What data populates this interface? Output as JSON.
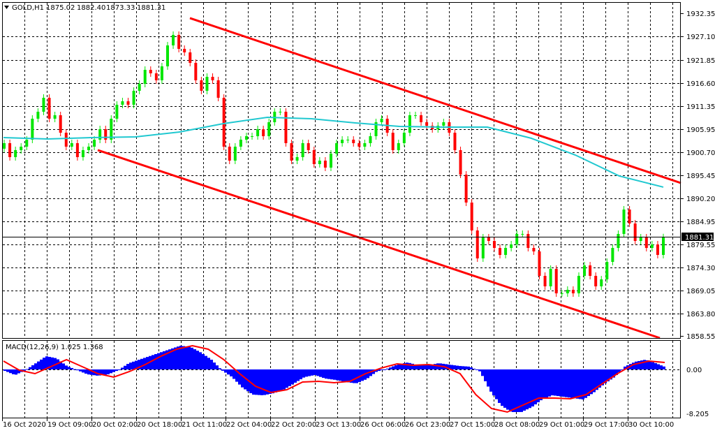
{
  "header": {
    "symbol_label": "GOLD,H1",
    "open": "1875.02",
    "high": "1882.40",
    "low": "1873.33",
    "close": "1881.31"
  },
  "current_price_label": "1881.31",
  "price_axis": [
    "1932.35",
    "1927.10",
    "1921.85",
    "1916.60",
    "1911.35",
    "1905.95",
    "1900.70",
    "1895.45",
    "1890.20",
    "1884.95",
    "1879.55",
    "1874.30",
    "1869.05",
    "1863.80",
    "1858.55"
  ],
  "macd_panel": {
    "label": "MACD(12,26,9) 1.025 1.368",
    "axis": [
      "0.00",
      "-8.205"
    ]
  },
  "time_axis": [
    "16 Oct 2020",
    "19 Oct 09:00",
    "20 Oct 02:00",
    "20 Oct 18:00",
    "21 Oct 11:00",
    "22 Oct 04:00",
    "22 Oct 20:00",
    "23 Oct 13:00",
    "26 Oct 06:00",
    "26 Oct 23:00",
    "27 Oct 15:00",
    "28 Oct 08:00",
    "29 Oct 01:00",
    "29 Oct 17:00",
    "30 Oct 10:00"
  ],
  "colors": {
    "up": "#00e600",
    "down": "#ff0000",
    "ma": "#20c8d0",
    "trend": "#ff0000",
    "histogram": "#0000ff",
    "signal": "#ff0000",
    "grid": "#000000"
  },
  "chart_data": [
    {
      "type": "candlestick",
      "title": "GOLD,H1",
      "ylim": [
        1858.55,
        1932.35
      ],
      "grid": true,
      "first_open": 1901.5,
      "closes": [
        1902.76,
        1899.58,
        1901.17,
        1901.96,
        1903.55,
        1908.33,
        1909.92,
        1913.1,
        1908.33,
        1909.12,
        1905.14,
        1901.96,
        1902.76,
        1899.58,
        1901.17,
        1901.96,
        1903.55,
        1905.94,
        1903.55,
        1908.33,
        1911.51,
        1912.3,
        1911.51,
        1914.69,
        1916.28,
        1919.46,
        1918.67,
        1917.08,
        1920.26,
        1925.03,
        1927.42,
        1924.24,
        1923.44,
        1921.05,
        1917.08,
        1914.69,
        1917.87,
        1917.08,
        1913.1,
        1901.96,
        1898.78,
        1901.96,
        1903.55,
        1904.35,
        1904.35,
        1905.94,
        1904.35,
        1907.53,
        1909.92,
        1909.92,
        1902.76,
        1898.78,
        1899.58,
        1902.76,
        1901.17,
        1897.99,
        1898.78,
        1897.19,
        1900.37,
        1902.76,
        1903.55,
        1903.55,
        1902.76,
        1901.96,
        1902.76,
        1904.35,
        1907.53,
        1908.33,
        1905.14,
        1901.17,
        1902.76,
        1905.14,
        1909.12,
        1909.12,
        1907.53,
        1906.73,
        1905.94,
        1906.73,
        1907.53,
        1905.14,
        1901.17,
        1895.6,
        1889.23,
        1882.87,
        1876.51,
        1881.28,
        1880.48,
        1878.89,
        1877.3,
        1878.89,
        1879.69,
        1882.08,
        1882.08,
        1878.89,
        1878.1,
        1872.53,
        1870.14,
        1874.12,
        1868.55,
        1868.55,
        1869.35,
        1868.55,
        1872.53,
        1874.91,
        1872.53,
        1870.14,
        1871.73,
        1875.71,
        1878.89,
        1882.08,
        1887.64,
        1884.46,
        1880.48,
        1881.28,
        1878.89,
        1879.69,
        1877.3,
        1881.31
      ],
      "moving_average": [
        1904.03,
        1903.71,
        1904.03,
        1904.19,
        1905.3,
        1907.21,
        1908.64,
        1908.33,
        1907.37,
        1906.58,
        1906.42,
        1906.42,
        1903.87,
        1900.05,
        1895.28,
        1892.74
      ],
      "trendlines": [
        {
          "start_price": 1931.24,
          "end_price": 1893.69
        },
        {
          "start_price": 1901.17,
          "end_price": 1858.37
        }
      ]
    },
    {
      "type": "bar",
      "title": "MACD(12,26,9)",
      "ylim": [
        -8.205,
        4.8
      ],
      "histogram": [
        -0.26,
        -1.04,
        -0.13,
        1.17,
        2.47,
        2.08,
        0.65,
        -0.13,
        -0.91,
        -1.17,
        -0.91,
        -0.13,
        1.17,
        1.82,
        2.47,
        3.13,
        3.78,
        4.43,
        4.17,
        3.13,
        1.82,
        -0.13,
        -1.43,
        -3.39,
        -4.69,
        -4.82,
        -4.43,
        -3.78,
        -2.6,
        -1.43,
        -1.04,
        -1.69,
        -1.95,
        -2.34,
        -2.6,
        -1.82,
        -0.39,
        0.13,
        0.91,
        1.3,
        0.78,
        0.78,
        1.17,
        0.91,
        0.65,
        0.52,
        -0.39,
        -4.04,
        -6.64,
        -7.94,
        -7.94,
        -7.03,
        -5.6,
        -4.82,
        -5.08,
        -5.34,
        -5.6,
        -4.3,
        -2.73,
        -1.43,
        0.52,
        1.43,
        1.82,
        1.17,
        0.39
      ],
      "signal": [
        1.56,
        -0.13,
        -0.78,
        0.52,
        1.82,
        0.52,
        -0.78,
        -1.43,
        -0.39,
        0.91,
        2.47,
        3.78,
        4.43,
        3.78,
        1.82,
        -0.78,
        -3.12,
        -4.3,
        -3.78,
        -2.34,
        -2.21,
        -2.47,
        -2.21,
        -0.78,
        0.26,
        1.04,
        0.78,
        0.91,
        0.52,
        -0.78,
        -4.69,
        -7.29,
        -7.94,
        -6.64,
        -5.34,
        -5.34,
        -5.47,
        -4.69,
        -2.73,
        -0.78,
        0.91,
        1.56,
        1.3
      ]
    }
  ]
}
